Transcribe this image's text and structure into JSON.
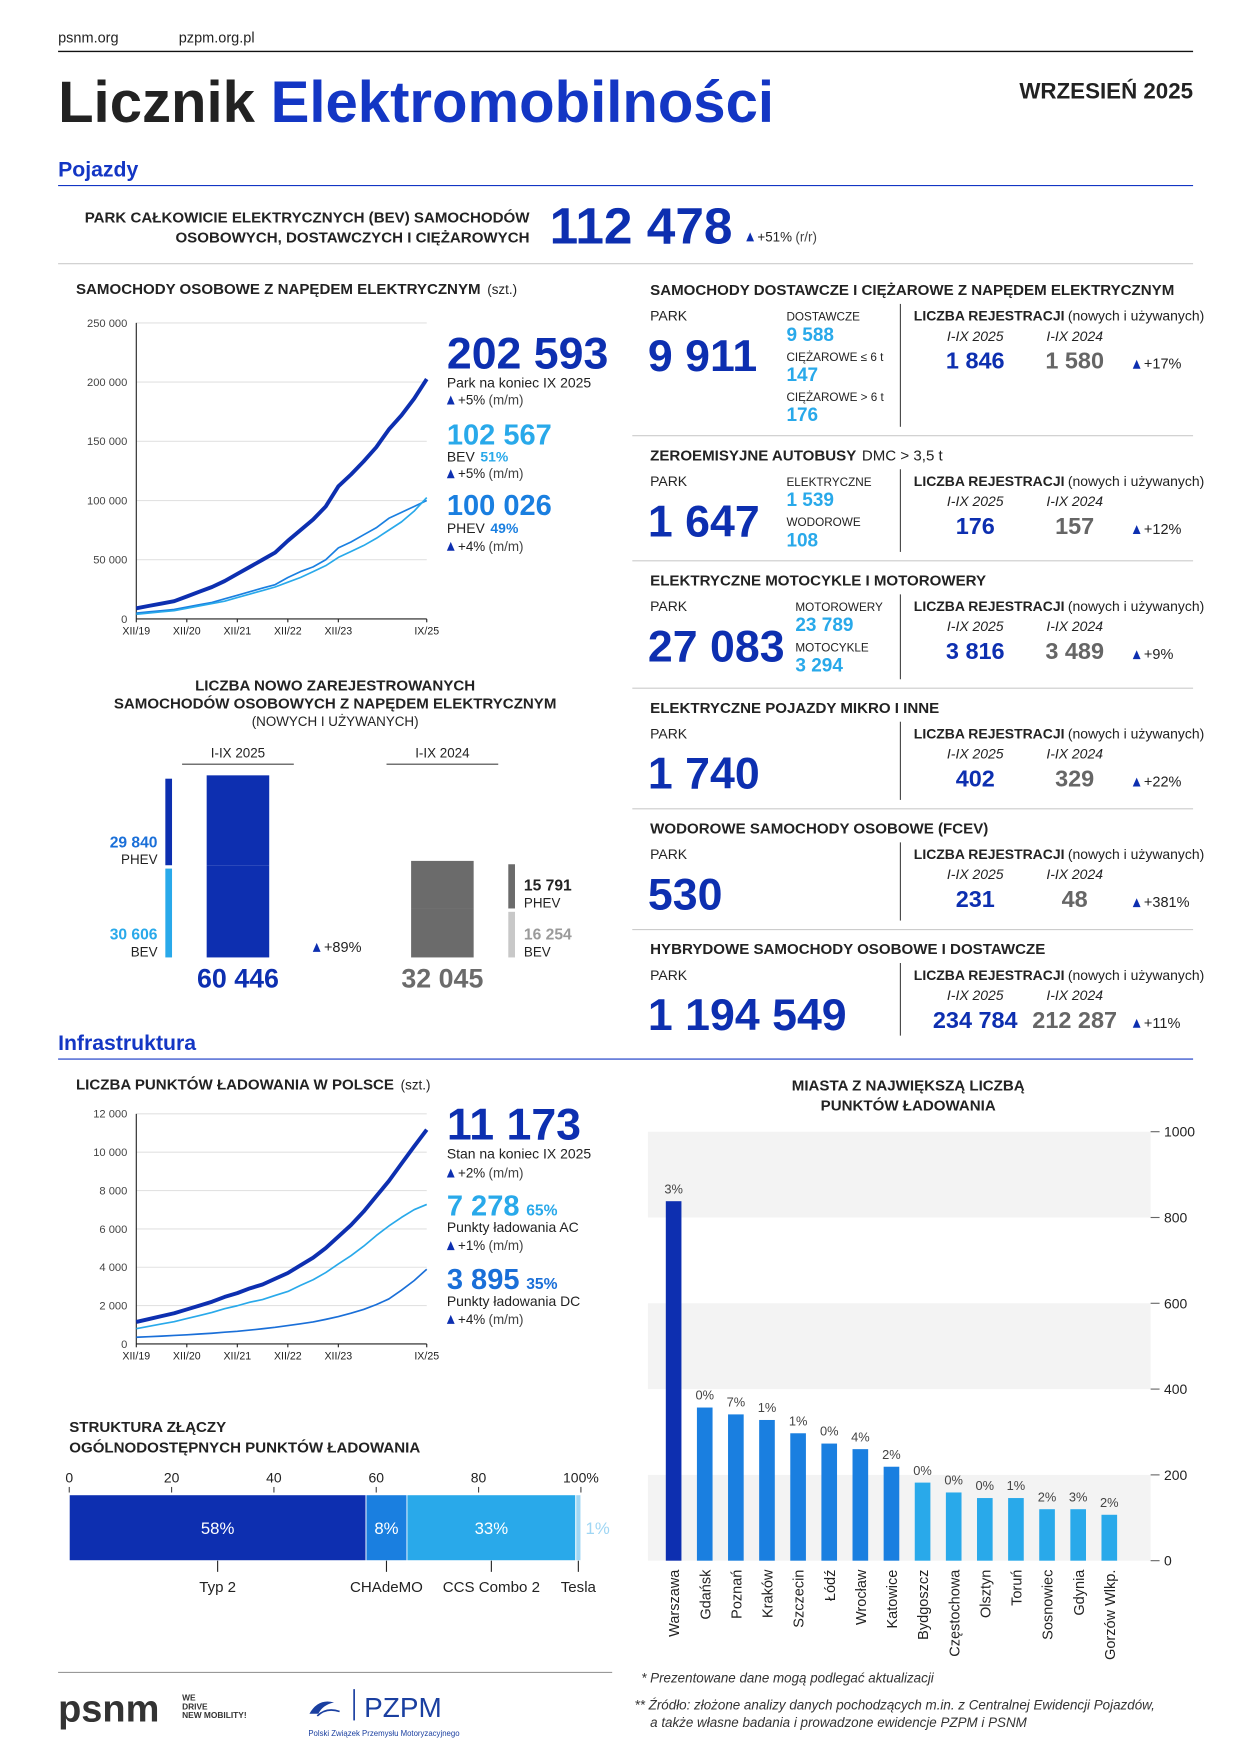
{
  "header": {
    "links": [
      "psnm.org",
      "pzpm.org.pl"
    ],
    "title": [
      "Licznik",
      "Elektromobilności"
    ],
    "date": "WRZESIEŃ 2025"
  },
  "sections": [
    "Pojazdy",
    "Infrastruktura"
  ],
  "bev_total": {
    "label": [
      "PARK CAŁKOWICIE ELEKTRYCZNYCH (BEV) SAMOCHODÓW",
      "OSOBOWYCH, DOSTAWCZYCH I CIĘŻAROWYCH"
    ],
    "value": "112 478",
    "change": "+51%",
    "period": "(r/r)"
  },
  "chart_data": [
    {
      "type": "line",
      "title": "SAMOCHODY OSOBOWE Z NAPĘDEM ELEKTRYCZNYM",
      "unit": "(szt.)",
      "categories": [
        "XII/19",
        null,
        null,
        null,
        "XII/20",
        null,
        null,
        null,
        "XII/21",
        null,
        null,
        null,
        "XII/22",
        null,
        null,
        null,
        "XII/23",
        null,
        null,
        null,
        null,
        null,
        null,
        "IX/25"
      ],
      "ylim": [
        0,
        250000
      ],
      "yticks": [
        0,
        {
          "value": 50000,
          "label": "50 000"
        },
        {
          "value": 100000,
          "label": "100 000"
        },
        {
          "value": 150000,
          "label": "150 000"
        },
        {
          "value": 200000,
          "label": "200 000"
        },
        {
          "value": 250000,
          "label": "250 000"
        }
      ],
      "grid": true,
      "series": [
        {
          "color": "#0d2fb0",
          "values": [
            9000,
            11000,
            13000,
            15000,
            19000,
            23000,
            27000,
            32000,
            38000,
            44000,
            50000,
            56000,
            66000,
            75000,
            84000,
            95000,
            112000,
            122000,
            133000,
            145000,
            160000,
            172000,
            186000,
            202593
          ]
        },
        {
          "name": "BEV",
          "color": "#29a9ea",
          "values": [
            4000,
            5000,
            6000,
            7000,
            9000,
            11000,
            13000,
            15000,
            18000,
            21000,
            24000,
            27000,
            31000,
            35000,
            40000,
            45000,
            52000,
            57000,
            62000,
            68000,
            75000,
            82000,
            91000,
            102567
          ]
        },
        {
          "name": "PHEV",
          "color": "#1a7fe0",
          "values": [
            5000,
            6000,
            7000,
            8000,
            10000,
            12000,
            14000,
            17000,
            20000,
            23000,
            26000,
            29000,
            35000,
            40000,
            44000,
            50000,
            60000,
            65000,
            71000,
            77000,
            85000,
            90000,
            95000,
            100026
          ]
        }
      ],
      "stats": [
        {
          "value": "202 593",
          "label": "Park na koniec IX 2025",
          "change": "+5%",
          "period": "(m/m)"
        },
        {
          "value": "102 567",
          "share": "51%",
          "change": "+5%",
          "period": "(m/m)"
        },
        {
          "value": "100 026",
          "share": "49%",
          "change": "+4%",
          "period": "(m/m)"
        }
      ]
    },
    {
      "type": "stacked-bar",
      "title": [
        "LICZBA NOWO ZAREJESTROWANYCH",
        "SAMOCHODÓW OSOBOWYCH Z NAPĘDEM ELEKTRYCZNYM",
        "(NOWYCH I UŻYWANYCH)"
      ],
      "categories": [
        "I-IX 2025",
        "I-IX 2024"
      ],
      "bar_colors": [
        "#0d2fb0",
        "#6b6b6b"
      ],
      "series": [
        {
          "name": "PHEV",
          "colors": [
            "#0d2fb0",
            "#6b6b6b"
          ],
          "label_colors": [
            "#1a6fd8",
            "#222222"
          ],
          "values": [
            29840,
            15791
          ],
          "value_labels": [
            "29 840",
            "15 791"
          ]
        },
        {
          "name": "BEV",
          "colors": [
            "#29a9ea",
            "#c8c8c8"
          ],
          "label_colors": [
            "#29a9ea",
            "#9a9a9a"
          ],
          "values": [
            30606,
            16254
          ],
          "value_labels": [
            "30 606",
            "16 254"
          ]
        }
      ],
      "totals": [
        {
          "value": 60446,
          "label": "60 446"
        },
        {
          "value": 32045,
          "label": "32 045"
        }
      ],
      "change": "+89%"
    },
    {
      "type": "line",
      "title": "LICZBA PUNKTÓW ŁADOWANIA W POLSCE",
      "unit": "(szt.)",
      "categories": [
        "XII/19",
        null,
        null,
        null,
        "XII/20",
        null,
        null,
        null,
        "XII/21",
        null,
        null,
        null,
        "XII/22",
        null,
        null,
        null,
        "XII/23",
        null,
        null,
        null,
        null,
        null,
        null,
        "IX/25"
      ],
      "ylim": [
        0,
        12000
      ],
      "yticks": [
        0,
        {
          "value": 2000,
          "label": "2 000"
        },
        {
          "value": 4000,
          "label": "4 000"
        },
        {
          "value": 6000,
          "label": "6 000"
        },
        {
          "value": 8000,
          "label": "8 000"
        },
        {
          "value": 10000,
          "label": "10 000"
        },
        {
          "value": 12000,
          "label": "12 000"
        }
      ],
      "grid": true,
      "series": [
        {
          "color": "#0d2fb0",
          "values": [
            1150,
            1300,
            1450,
            1600,
            1800,
            2000,
            2200,
            2450,
            2650,
            2900,
            3100,
            3400,
            3700,
            4100,
            4500,
            5000,
            5600,
            6200,
            6900,
            7700,
            8500,
            9400,
            10300,
            11173
          ]
        },
        {
          "name": "Punkty ładowania AC",
          "color": "#29a9ea",
          "values": [
            800,
            920,
            1040,
            1160,
            1320,
            1480,
            1640,
            1840,
            1990,
            2180,
            2310,
            2530,
            2740,
            3050,
            3350,
            3720,
            4170,
            4600,
            5100,
            5650,
            6150,
            6600,
            7000,
            7278
          ]
        },
        {
          "name": "Punkty ładowania DC",
          "color": "#1a6fd8",
          "values": [
            350,
            380,
            410,
            440,
            480,
            520,
            560,
            610,
            660,
            720,
            790,
            870,
            960,
            1050,
            1150,
            1280,
            1430,
            1600,
            1800,
            2050,
            2350,
            2800,
            3300,
            3895
          ]
        }
      ],
      "stats": [
        {
          "value": "11 173",
          "label": "Stan na koniec IX 2025",
          "change": "+2%",
          "period": "(m/m)"
        },
        {
          "value": "7 278",
          "share": "65%",
          "change": "+1%",
          "period": "(m/m)"
        },
        {
          "value": "3 895",
          "share": "35%",
          "change": "+4%",
          "period": "(m/m)"
        }
      ]
    },
    {
      "type": "hbar-stacked",
      "title": [
        "STRUKTURA ZŁĄCZY",
        "OGÓLNODOSTĘPNYCH PUNKTÓW ŁADOWANIA"
      ],
      "xlim": [
        0,
        100
      ],
      "xticks": [
        0,
        20,
        40,
        60,
        80,
        {
          "value": 100,
          "label": "100%"
        }
      ],
      "categories": [
        "Typ 2",
        "CHAdeMO",
        "CCS Combo 2",
        "Tesla"
      ],
      "values": [
        58,
        8,
        33,
        1
      ],
      "value_labels": [
        "58%",
        "8%",
        "33%",
        "1%"
      ],
      "colors": [
        "#0d2fb0",
        "#1a7fe0",
        "#29a9ea",
        "#9fd6f4"
      ]
    },
    {
      "type": "bar",
      "title": [
        "MIASTA Z NAJWIĘKSZĄ LICZBĄ",
        "PUNKTÓW ŁADOWANIA"
      ],
      "categories": [
        "Warszawa",
        "Gdańsk",
        "Poznań",
        "Kraków",
        "Szczecin",
        "Łódź",
        "Wrocław",
        "Katowice",
        "Bydgoszcz",
        "Częstochowa",
        "Olsztyn",
        "Toruń",
        "Sosnowiec",
        "Gdynia",
        "Gorzów Wlkp."
      ],
      "values": [
        838,
        357,
        341,
        328,
        297,
        273,
        260,
        219,
        182,
        159,
        146,
        146,
        120,
        120,
        107
      ],
      "annotations": [
        "3%",
        "0%",
        "7%",
        "1%",
        "1%",
        "0%",
        "4%",
        "2%",
        "0%",
        "0%",
        "0%",
        "1%",
        "2%",
        "3%",
        "2%"
      ],
      "colors": [
        "#0d2fb0",
        "#1a7fe0",
        "#1a7fe0",
        "#1a7fe0",
        "#1a7fe0",
        "#1a7fe0",
        "#1a7fe0",
        "#1a7fe0",
        "#29a9ea",
        "#29a9ea",
        "#29a9ea",
        "#29a9ea",
        "#29a9ea",
        "#29a9ea",
        "#29a9ea"
      ],
      "ylim": [
        0,
        1000
      ],
      "yticks": [
        0,
        200,
        400,
        600,
        800,
        1000
      ],
      "bands": true
    }
  ],
  "panels": [
    {
      "title": "SAMOCHODY DOSTAWCZE I CIĘŻAROWE Z NAPĘDEM ELEKTRYCZNYM",
      "park_label": "PARK",
      "park": "9 911",
      "breakdown": [
        {
          "label": "DOSTAWCZE",
          "value": "9 588"
        },
        {
          "label": "CIĘŻAROWE ≤ 6 t",
          "value": "147"
        },
        {
          "label": "CIĘŻAROWE > 6 t",
          "value": "176"
        }
      ],
      "reg_label": "LICZBA REJESTRACJI",
      "reg_note": "(nowych i używanych)",
      "periods": [
        "I-IX 2025",
        "I-IX 2024"
      ],
      "reg": [
        "1 846",
        "1 580"
      ],
      "change": "+17%"
    },
    {
      "title": "ZEROEMISYJNE AUTOBUSY",
      "subtitle": "DMC > 3,5 t",
      "park_label": "PARK",
      "park": "1 647",
      "breakdown": [
        {
          "label": "ELEKTRYCZNE",
          "value": "1 539"
        },
        {
          "label": "WODOROWE",
          "value": "108"
        }
      ],
      "reg_label": "LICZBA REJESTRACJI",
      "reg_note": "(nowych i używanych)",
      "periods": [
        "I-IX 2025",
        "I-IX 2024"
      ],
      "reg": [
        "176",
        "157"
      ],
      "change": "+12%"
    },
    {
      "title": "ELEKTRYCZNE MOTOCYKLE I MOTOROWERY",
      "park_label": "PARK",
      "park": "27 083",
      "breakdown": [
        {
          "label": "MOTOROWERY",
          "value": "23 789"
        },
        {
          "label": "MOTOCYKLE",
          "value": "3 294"
        }
      ],
      "reg_label": "LICZBA REJESTRACJI",
      "reg_note": "(nowych i używanych)",
      "periods": [
        "I-IX 2025",
        "I-IX 2024"
      ],
      "reg": [
        "3 816",
        "3 489"
      ],
      "change": "+9%"
    },
    {
      "title": "ELEKTRYCZNE POJAZDY MIKRO I INNE",
      "park_label": "PARK",
      "park": "1 740",
      "reg_label": "LICZBA REJESTRACJI",
      "reg_note": "(nowych i używanych)",
      "periods": [
        "I-IX 2025",
        "I-IX 2024"
      ],
      "reg": [
        "402",
        "329"
      ],
      "change": "+22%"
    },
    {
      "title": "WODOROWE SAMOCHODY OSOBOWE (FCEV)",
      "park_label": "PARK",
      "park": "530",
      "reg_label": "LICZBA REJESTRACJI",
      "reg_note": "(nowych i używanych)",
      "periods": [
        "I-IX 2025",
        "I-IX 2024"
      ],
      "reg": [
        "231",
        "48"
      ],
      "change": "+381%"
    },
    {
      "title": "HYBRYDOWE SAMOCHODY OSOBOWE I DOSTAWCZE",
      "park_label": "PARK",
      "park": "1 194 549",
      "reg_label": "LICZBA REJESTRACJI",
      "reg_note": "(nowych i używanych)",
      "periods": [
        "I-IX 2025",
        "I-IX 2024"
      ],
      "reg": [
        "234 784",
        "212 287"
      ],
      "change": "+11%"
    }
  ],
  "footer": {
    "notes": [
      "* Prezentowane dane mogą podlegać aktualizacji",
      "** Źródło: złożone analizy danych pochodzących m.in. z Centralnej Ewidencji Pojazdów,",
      "a także własne badania i prowadzone ewidencje PZPM i PSNM"
    ],
    "psnm": {
      "name": "psnm",
      "tagline": [
        "WE",
        "DRIVE",
        "NEW MOBILITY!"
      ]
    },
    "pzpm": {
      "name": "PZPM",
      "full": "Polski Związek Przemysłu Motoryzacyjnego"
    }
  }
}
